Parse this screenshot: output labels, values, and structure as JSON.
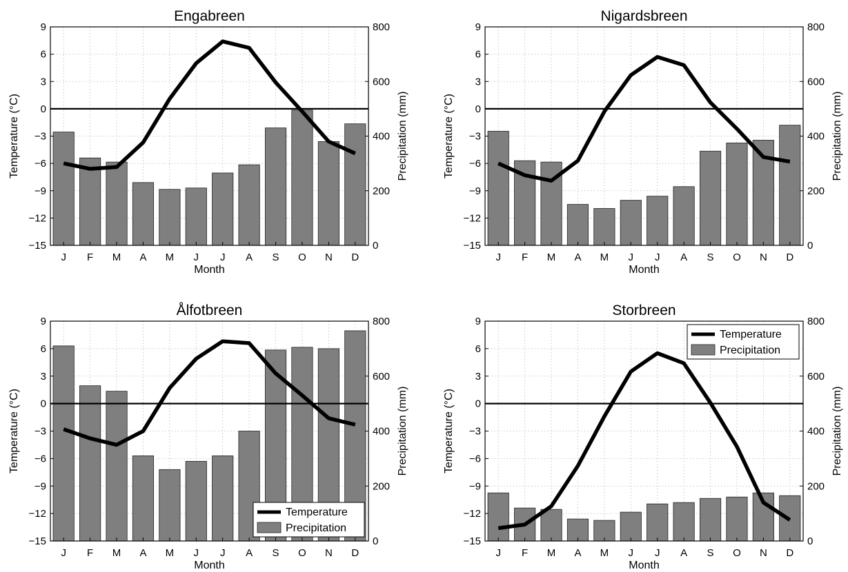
{
  "chart_data": [
    {
      "type": "bar",
      "title": "Engabreen",
      "categories": [
        "J",
        "F",
        "M",
        "A",
        "M",
        "J",
        "J",
        "A",
        "S",
        "O",
        "N",
        "D"
      ],
      "xlabel": "Month",
      "ylabel": "Temperature (°C)",
      "ylabel_right": "Precipitation (mm)",
      "ylim": [
        -15,
        9
      ],
      "yticks": [
        -15,
        -12,
        -9,
        -6,
        -3,
        0,
        3,
        6,
        9
      ],
      "ylim_right": [
        0,
        800
      ],
      "yticks_right": [
        0,
        200,
        400,
        600,
        800
      ],
      "grid": true,
      "legend": null,
      "series": [
        {
          "name": "Temperature",
          "kind": "line",
          "axis": "left",
          "values": [
            -6.0,
            -6.6,
            -6.4,
            -3.7,
            1.1,
            5.0,
            7.4,
            6.7,
            2.9,
            -0.3,
            -3.6,
            -4.9
          ]
        },
        {
          "name": "Precipitation",
          "kind": "bar",
          "axis": "right",
          "values": [
            415,
            320,
            305,
            230,
            205,
            210,
            265,
            295,
            430,
            495,
            380,
            445
          ]
        }
      ]
    },
    {
      "type": "bar",
      "title": "Nigardsbreen",
      "categories": [
        "J",
        "F",
        "M",
        "A",
        "M",
        "J",
        "J",
        "A",
        "S",
        "O",
        "N",
        "D"
      ],
      "xlabel": "Month",
      "ylabel": "Temperature (°C)",
      "ylabel_right": "Precipitation (mm)",
      "ylim": [
        -15,
        9
      ],
      "yticks": [
        -15,
        -12,
        -9,
        -6,
        -3,
        0,
        3,
        6,
        9
      ],
      "ylim_right": [
        0,
        800
      ],
      "yticks_right": [
        0,
        200,
        400,
        600,
        800
      ],
      "grid": true,
      "legend": null,
      "series": [
        {
          "name": "Temperature",
          "kind": "line",
          "axis": "left",
          "values": [
            -6.0,
            -7.3,
            -7.9,
            -5.7,
            -0.3,
            3.7,
            5.7,
            4.8,
            0.7,
            -2.2,
            -5.3,
            -5.8
          ]
        },
        {
          "name": "Precipitation",
          "kind": "bar",
          "axis": "right",
          "values": [
            418,
            310,
            305,
            150,
            135,
            165,
            180,
            215,
            345,
            375,
            385,
            440
          ]
        }
      ]
    },
    {
      "type": "bar",
      "title": "Ålfotbreen",
      "categories": [
        "J",
        "F",
        "M",
        "A",
        "M",
        "J",
        "J",
        "A",
        "S",
        "O",
        "N",
        "D"
      ],
      "xlabel": "Month",
      "ylabel": "Temperature (°C)",
      "ylabel_right": "Precipitation (mm)",
      "ylim": [
        -15,
        9
      ],
      "yticks": [
        -15,
        -12,
        -9,
        -6,
        -3,
        0,
        3,
        6,
        9
      ],
      "ylim_right": [
        0,
        800
      ],
      "yticks_right": [
        0,
        200,
        400,
        600,
        800
      ],
      "grid": true,
      "legend": "bottom-right",
      "series": [
        {
          "name": "Temperature",
          "kind": "line",
          "axis": "left",
          "values": [
            -2.8,
            -3.8,
            -4.5,
            -3.0,
            1.7,
            4.9,
            6.8,
            6.6,
            3.3,
            0.9,
            -1.6,
            -2.3
          ]
        },
        {
          "name": "Precipitation",
          "kind": "bar",
          "axis": "right",
          "values": [
            710,
            565,
            545,
            310,
            260,
            290,
            310,
            400,
            695,
            705,
            700,
            765
          ]
        }
      ]
    },
    {
      "type": "bar",
      "title": "Storbreen",
      "categories": [
        "J",
        "F",
        "M",
        "A",
        "M",
        "J",
        "J",
        "A",
        "S",
        "O",
        "N",
        "D"
      ],
      "xlabel": "Month",
      "ylabel": "Temperature (°C)",
      "ylabel_right": "Precipitation (mm)",
      "ylim": [
        -15,
        9
      ],
      "yticks": [
        -15,
        -12,
        -9,
        -6,
        -3,
        0,
        3,
        6,
        9
      ],
      "ylim_right": [
        0,
        800
      ],
      "yticks_right": [
        0,
        200,
        400,
        600,
        800
      ],
      "grid": true,
      "legend": "top-right",
      "series": [
        {
          "name": "Temperature",
          "kind": "line",
          "axis": "left",
          "values": [
            -13.6,
            -13.2,
            -11.2,
            -6.8,
            -1.4,
            3.5,
            5.5,
            4.4,
            0.1,
            -4.7,
            -10.8,
            -12.7
          ]
        },
        {
          "name": "Precipitation",
          "kind": "bar",
          "axis": "right",
          "values": [
            175,
            120,
            115,
            80,
            75,
            105,
            135,
            140,
            155,
            160,
            175,
            165
          ]
        }
      ]
    }
  ]
}
